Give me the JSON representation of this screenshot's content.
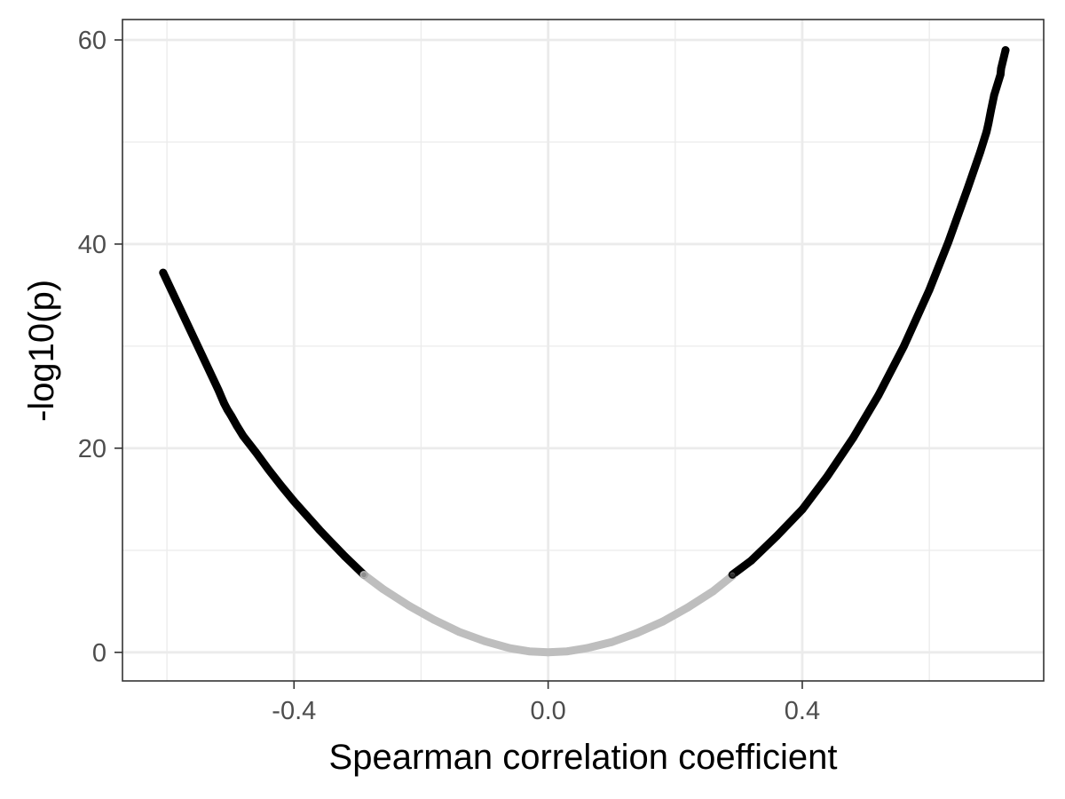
{
  "chart_data": {
    "type": "scatter",
    "title": "",
    "xlabel": "Spearman correlation coefficient",
    "ylabel": "-log10(p)",
    "xlim": [
      -0.67,
      0.78
    ],
    "ylim": [
      -2.8,
      62.0
    ],
    "x_major_ticks": [
      -0.4,
      0.0,
      0.4
    ],
    "x_tick_labels": [
      "-0.4",
      "0.0",
      "0.4"
    ],
    "x_minor_ticks": [
      -0.6,
      -0.2,
      0.2,
      0.6
    ],
    "y_major_ticks": [
      0,
      20,
      40,
      60
    ],
    "y_tick_labels": [
      "0",
      "20",
      "40",
      "60"
    ],
    "y_minor_ticks": [
      10,
      30,
      50
    ],
    "grid": true,
    "significance_threshold_abs_r": 0.29,
    "colors": {
      "significant": "#000000",
      "not_significant": "#bebebe",
      "grid": "#ebebeb",
      "panel_border": "#333333",
      "tick_text": "#4d4d4d"
    },
    "series": [
      {
        "values": [
          [
            -0.606,
            37.2
          ],
          [
            -0.519,
            25.7
          ],
          [
            -0.51,
            24.4
          ],
          [
            -0.505,
            23.8
          ],
          [
            -0.499,
            23.2
          ],
          [
            -0.49,
            22.2
          ],
          [
            -0.48,
            21.2
          ],
          [
            -0.46,
            19.6
          ],
          [
            -0.44,
            17.9
          ],
          [
            -0.42,
            16.3
          ],
          [
            -0.4,
            14.8
          ],
          [
            -0.38,
            13.4
          ],
          [
            -0.36,
            12.0
          ],
          [
            -0.34,
            10.7
          ],
          [
            -0.32,
            9.4
          ],
          [
            -0.3,
            8.2
          ],
          [
            -0.29,
            7.6
          ]
        ],
        "color": "#000000"
      },
      {
        "values": [
          [
            -0.29,
            7.6
          ],
          [
            -0.26,
            6.2
          ],
          [
            -0.22,
            4.6
          ],
          [
            -0.18,
            3.2
          ],
          [
            -0.14,
            2.0
          ],
          [
            -0.1,
            1.1
          ],
          [
            -0.06,
            0.4
          ],
          [
            -0.03,
            0.1
          ],
          [
            0.0,
            0.0
          ],
          [
            0.03,
            0.1
          ],
          [
            0.06,
            0.4
          ],
          [
            0.1,
            1.0
          ],
          [
            0.14,
            1.9
          ],
          [
            0.18,
            3.0
          ],
          [
            0.22,
            4.4
          ],
          [
            0.26,
            6.0
          ],
          [
            0.29,
            7.5
          ]
        ],
        "color": "#bebebe"
      },
      {
        "values": [
          [
            0.29,
            7.6
          ],
          [
            0.32,
            9.0
          ],
          [
            0.36,
            11.4
          ],
          [
            0.4,
            14.0
          ],
          [
            0.44,
            17.3
          ],
          [
            0.48,
            21.0
          ],
          [
            0.52,
            25.2
          ],
          [
            0.56,
            30.0
          ],
          [
            0.6,
            35.5
          ],
          [
            0.63,
            40.2
          ],
          [
            0.66,
            45.4
          ],
          [
            0.68,
            49.0
          ],
          [
            0.69,
            51.0
          ],
          [
            0.693,
            51.8
          ],
          [
            0.697,
            53.1
          ],
          [
            0.702,
            54.6
          ],
          [
            0.712,
            56.6
          ],
          [
            0.713,
            57.2
          ],
          [
            0.72,
            59.0
          ]
        ],
        "color": "#000000"
      }
    ]
  }
}
